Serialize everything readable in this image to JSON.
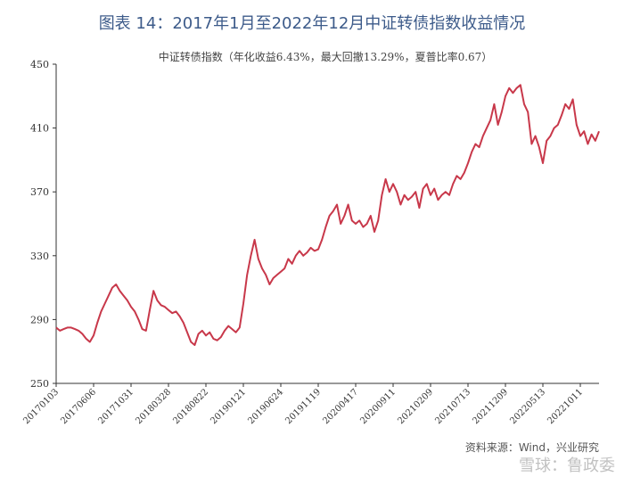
{
  "chart_data": {
    "type": "line",
    "title": "图表 14：2017年1月至2022年12月中证转债指数收益情况",
    "subtitle": "中证转债指数（年化收益6.43%，最大回撤13.29%，夏普比率0.67）",
    "source": "资料来源：Wind，兴业研究",
    "watermark": "雪球：鲁政委",
    "categories": [
      "20170103",
      null,
      null,
      null,
      null,
      null,
      null,
      null,
      null,
      null,
      "20170606",
      null,
      null,
      null,
      null,
      null,
      null,
      null,
      null,
      null,
      "20171031",
      null,
      null,
      null,
      null,
      null,
      null,
      null,
      null,
      null,
      "20180328",
      null,
      null,
      null,
      null,
      null,
      null,
      null,
      null,
      null,
      "20180822",
      null,
      null,
      null,
      null,
      null,
      null,
      null,
      null,
      null,
      "20190121",
      null,
      null,
      null,
      null,
      null,
      null,
      null,
      null,
      null,
      "20190624",
      null,
      null,
      null,
      null,
      null,
      null,
      null,
      null,
      null,
      "20191119",
      null,
      null,
      null,
      null,
      null,
      null,
      null,
      null,
      null,
      "20200417",
      null,
      null,
      null,
      null,
      null,
      null,
      null,
      null,
      null,
      "20200911",
      null,
      null,
      null,
      null,
      null,
      null,
      null,
      null,
      null,
      "20210209",
      null,
      null,
      null,
      null,
      null,
      null,
      null,
      null,
      null,
      "20210713",
      null,
      null,
      null,
      null,
      null,
      null,
      null,
      null,
      null,
      "20211209",
      null,
      null,
      null,
      null,
      null,
      null,
      null,
      null,
      null,
      "20220513",
      null,
      null,
      null,
      null,
      null,
      null,
      null,
      null,
      null,
      "20221011",
      null,
      null,
      null,
      null,
      null
    ],
    "series": [
      {
        "name": "中证转债指数",
        "color": "#c8384a",
        "values": [
          285,
          283,
          284,
          285,
          285,
          284,
          283,
          281,
          278,
          276,
          280,
          288,
          295,
          300,
          305,
          310,
          312,
          308,
          305,
          302,
          298,
          295,
          290,
          284,
          283,
          296,
          308,
          302,
          299,
          298,
          296,
          294,
          295,
          292,
          288,
          282,
          276,
          274,
          281,
          283,
          280,
          282,
          278,
          277,
          279,
          283,
          286,
          284,
          282,
          285,
          300,
          318,
          330,
          340,
          328,
          322,
          318,
          312,
          316,
          318,
          320,
          322,
          328,
          325,
          330,
          333,
          330,
          332,
          335,
          333,
          334,
          340,
          348,
          355,
          358,
          362,
          350,
          355,
          362,
          352,
          350,
          352,
          348,
          350,
          355,
          345,
          352,
          368,
          378,
          370,
          375,
          370,
          362,
          368,
          365,
          367,
          370,
          360,
          372,
          375,
          368,
          372,
          365,
          368,
          370,
          368,
          375,
          380,
          378,
          382,
          388,
          395,
          400,
          398,
          405,
          410,
          415,
          425,
          412,
          420,
          430,
          435,
          432,
          435,
          437,
          425,
          420,
          400,
          405,
          398,
          388,
          402,
          405,
          410,
          412,
          418,
          425,
          422,
          428,
          412,
          405,
          408,
          400,
          406,
          402,
          408
        ]
      }
    ],
    "ylim": [
      250,
      450
    ],
    "yticks": [
      250,
      290,
      330,
      370,
      410,
      450
    ]
  }
}
